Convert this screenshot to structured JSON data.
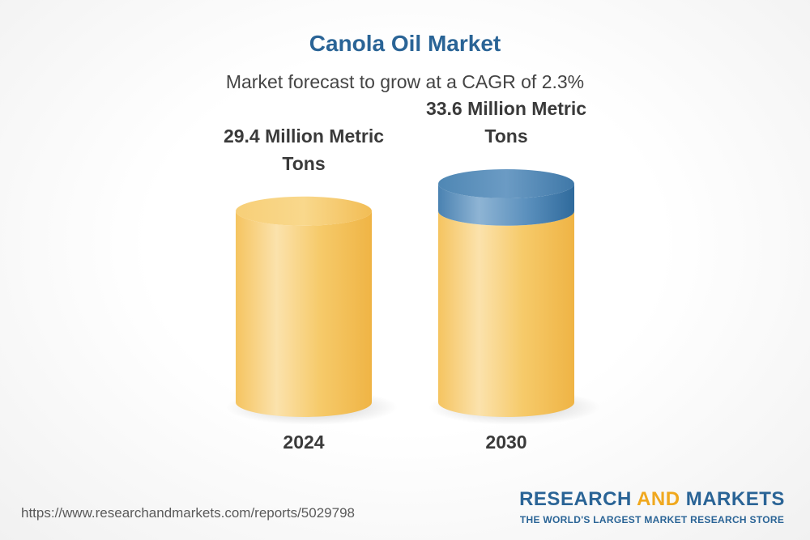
{
  "title": "Canola Oil Market",
  "subtitle": "Market forecast to grow at a CAGR of 2.3%",
  "chart_data": {
    "type": "bar",
    "style": "3d-cylinder",
    "categories": [
      "2024",
      "2030"
    ],
    "values": [
      29.4,
      33.6
    ],
    "unit": "Million Metric Tons",
    "data_labels": [
      "29.4 Million Metric Tons",
      "33.6 Million Metric Tons"
    ],
    "value_label_lines": [
      [
        "29.4 Million Metric",
        "Tons"
      ],
      [
        "33.6 Million Metric",
        "Tons"
      ]
    ],
    "ylim": [
      0,
      33.6
    ],
    "grid": false,
    "legend": "none",
    "colors": {
      "bar": "#f5c35c",
      "bar_light": "#fbe2ac",
      "bar_dark": "#efb445",
      "growth_segment": "#4d86b4",
      "growth_segment_light": "#8eb4d4"
    }
  },
  "footer": {
    "url": "https://www.researchandmarkets.com/reports/5029798",
    "logo_word1": "RESEARCH",
    "logo_word2": "AND",
    "logo_word3": "MARKETS",
    "logo_tagline": "THE WORLD'S LARGEST MARKET RESEARCH STORE"
  }
}
